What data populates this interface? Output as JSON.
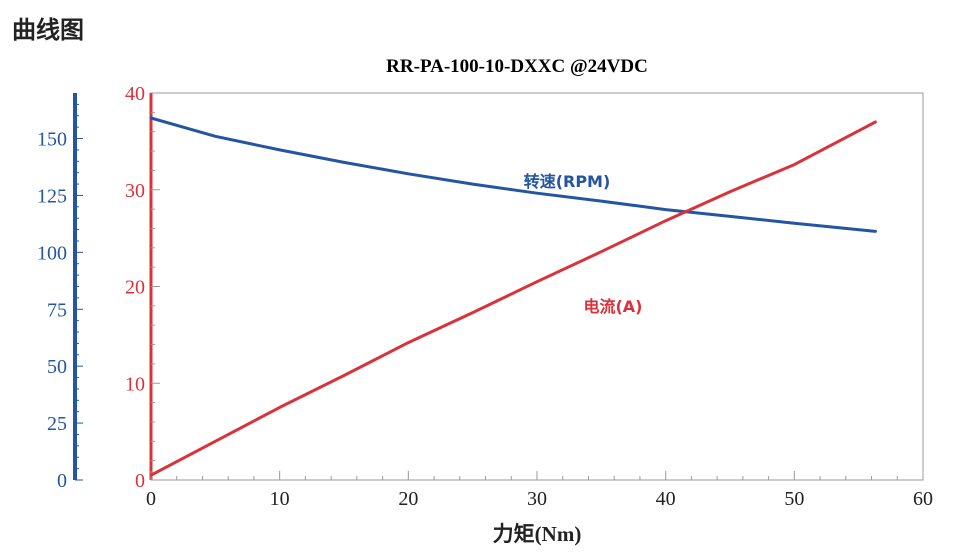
{
  "page": {
    "heading": "曲线图"
  },
  "colors": {
    "speed": "#2455a0",
    "current": "#d9323a",
    "axis": "#9a9a9a",
    "title": "#222222"
  },
  "chart_data": {
    "type": "line",
    "title": "RR-PA-100-10-DXXC @24VDC",
    "xlabel": "力矩(Nm)",
    "xlim": [
      0,
      60
    ],
    "xticks": [
      0,
      10,
      20,
      30,
      40,
      50,
      60
    ],
    "y_current": {
      "lim": [
        0,
        40
      ],
      "ticks": [
        0,
        10,
        20,
        30,
        40
      ]
    },
    "y_speed": {
      "lim": [
        0,
        170
      ],
      "ticks": [
        0,
        25,
        50,
        75,
        100,
        125,
        150
      ]
    },
    "series": [
      {
        "name": "转速(RPM)",
        "axis": "speed",
        "x": [
          0,
          5,
          10,
          15,
          20,
          25,
          30,
          35,
          40,
          45,
          50,
          56.3
        ],
        "y": [
          159,
          151,
          145,
          139.5,
          134.5,
          130,
          126,
          122.5,
          118.8,
          115.8,
          112.8,
          109.2
        ]
      },
      {
        "name": "电流(A)",
        "axis": "current",
        "x": [
          0,
          5,
          10,
          15,
          20,
          25,
          30,
          35,
          40,
          45,
          50,
          56.3
        ],
        "y": [
          0.5,
          4.0,
          7.5,
          10.8,
          14.2,
          17.3,
          20.5,
          23.6,
          26.8,
          29.8,
          32.6,
          37.0
        ]
      }
    ]
  }
}
